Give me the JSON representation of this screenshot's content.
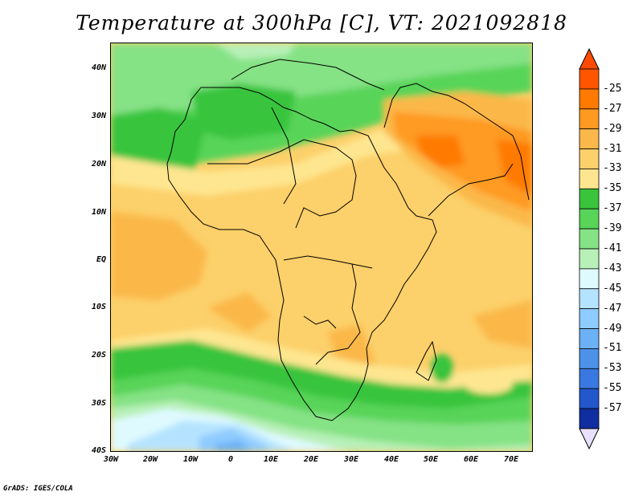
{
  "title": "Temperature at 300hPa [C], VT: 2021092818",
  "credit": "GrADS: IGES/COLA",
  "lat_labels": [
    "40N",
    "30N",
    "20N",
    "10N",
    "EQ",
    "10S",
    "20S",
    "30S",
    "40S"
  ],
  "lon_labels": [
    "30W",
    "20W",
    "10W",
    "0",
    "10E",
    "20E",
    "30E",
    "40E",
    "50E",
    "60E",
    "70E"
  ],
  "colorbar": {
    "levels": [
      "-25",
      "-27",
      "-29",
      "-31",
      "-33",
      "-35",
      "-37",
      "-39",
      "-41",
      "-43",
      "-45",
      "-47",
      "-49",
      "-51",
      "-53",
      "-55",
      "-57"
    ],
    "colors": [
      "#ff5500",
      "#ff7a00",
      "#ff9a20",
      "#fbb84a",
      "#fcd06a",
      "#fee690",
      "#39c43c",
      "#58d458",
      "#85e285",
      "#b8f0b8",
      "#dffaff",
      "#b5e3ff",
      "#8ecbff",
      "#6cb1f5",
      "#4d92e8",
      "#3878e0",
      "#2258cc",
      "#102ea0"
    ],
    "end_colors": {
      "top": "#ff4a00",
      "bottom": "#e8e0ff"
    }
  }
}
